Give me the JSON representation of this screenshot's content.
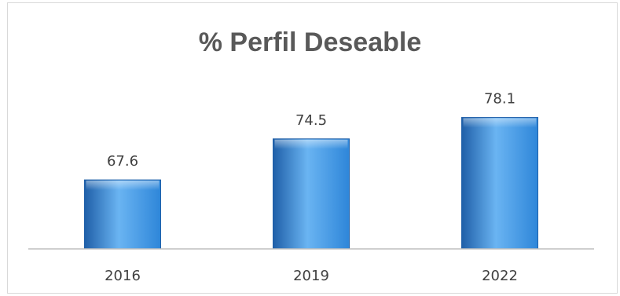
{
  "chart_data": {
    "type": "bar",
    "title": "% Perfil Deseable",
    "categories": [
      "2016",
      "2019",
      "2022"
    ],
    "values": [
      67.6,
      74.5,
      78.1
    ],
    "data_labels": [
      "67.6",
      "74.5",
      "78.1"
    ],
    "xlabel": "",
    "ylabel": "",
    "ylim": [
      56,
      82
    ],
    "grid": false,
    "legend": "none",
    "bar_color": "#2e86d9",
    "bar_color_light": "#6ab4f2",
    "bar_color_dark": "#1f5fa8"
  }
}
